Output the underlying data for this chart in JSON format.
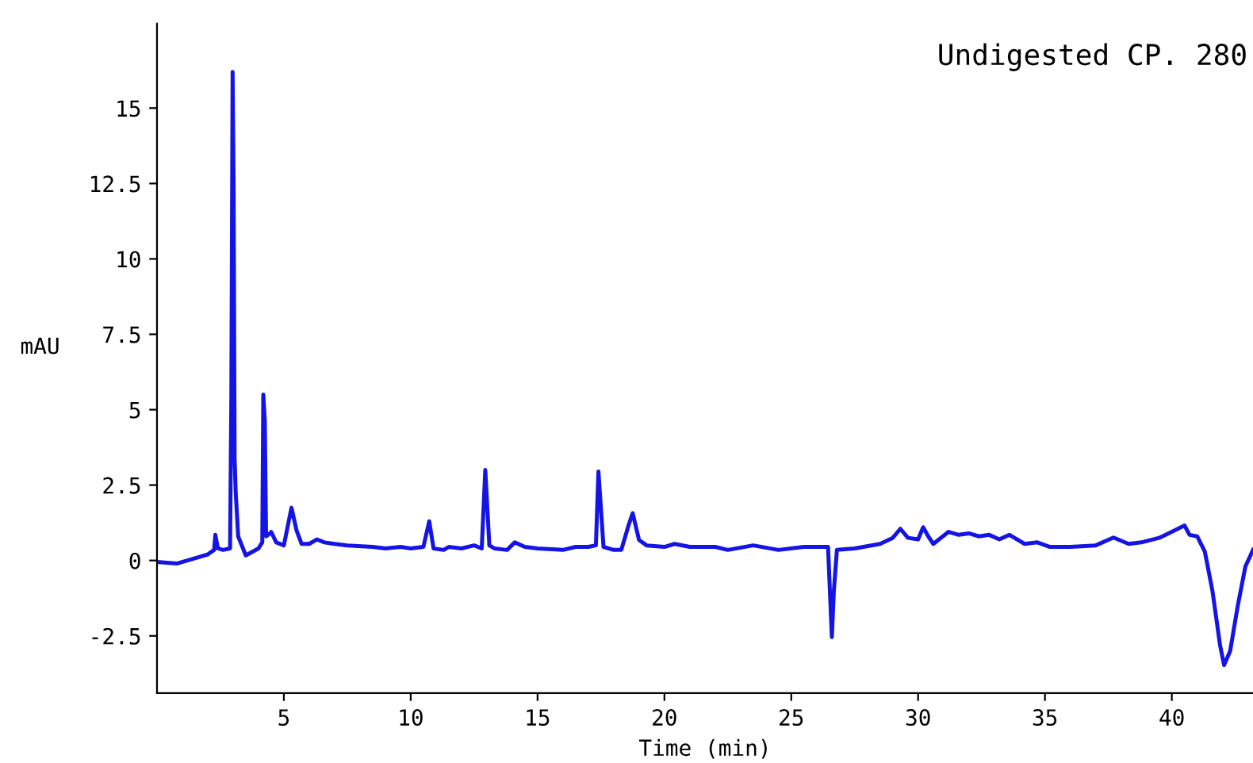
{
  "chart_data": {
    "type": "line",
    "xlabel": "Time (min)",
    "ylabel": "mAU",
    "annotations": [
      "Undigested CP. 280"
    ],
    "xlim": [
      0,
      43.2
    ],
    "ylim": [
      -4.4,
      17.8
    ],
    "xticks": [
      5,
      10,
      15,
      20,
      25,
      30,
      35,
      40
    ],
    "yticks": [
      -2.5,
      0,
      2.5,
      5,
      7.5,
      10,
      12.5,
      15
    ],
    "grid": false,
    "legend": false,
    "marker": "none",
    "line_style": "solid",
    "series": [
      {
        "color": "#1414e6",
        "x": [
          0,
          0.8,
          2.0,
          2.25,
          2.3,
          2.4,
          2.6,
          2.88,
          2.93,
          2.98,
          3.02,
          3.06,
          3.1,
          3.2,
          3.5,
          4.0,
          4.15,
          4.19,
          4.25,
          4.3,
          4.45,
          4.5,
          4.7,
          5.0,
          5.3,
          5.5,
          5.7,
          6.0,
          6.3,
          6.6,
          7.0,
          7.5,
          8.5,
          9.0,
          9.6,
          10.0,
          10.5,
          10.73,
          10.9,
          11.3,
          11.5,
          12.0,
          12.5,
          12.8,
          12.94,
          13.1,
          13.3,
          13.8,
          14.1,
          14.5,
          15,
          16,
          16.5,
          17,
          17.3,
          17.4,
          17.6,
          18.0,
          18.3,
          18.6,
          18.75,
          19.0,
          19.3,
          20.0,
          20.4,
          21,
          22,
          22.5,
          23.5,
          24.5,
          25.5,
          26.45,
          26.6,
          26.68,
          26.8,
          27.5,
          28.5,
          29.0,
          29.3,
          29.6,
          30.0,
          30.2,
          30.4,
          30.6,
          31.2,
          31.6,
          32.0,
          32.4,
          32.8,
          33.2,
          33.6,
          34.2,
          34.7,
          35.2,
          36,
          37,
          37.7,
          38.3,
          38.8,
          39.5,
          40.0,
          40.5,
          40.7,
          41.0,
          41.3,
          41.6,
          41.9,
          42.06,
          42.3,
          42.6,
          42.9,
          43.2
        ],
        "values": [
          -0.05,
          -0.1,
          0.2,
          0.35,
          0.85,
          0.4,
          0.35,
          0.4,
          5.4,
          16.2,
          12.4,
          3.4,
          2.3,
          0.8,
          0.17,
          0.4,
          0.6,
          5.5,
          4.6,
          0.8,
          0.9,
          0.95,
          0.6,
          0.5,
          1.75,
          1.0,
          0.55,
          0.55,
          0.7,
          0.6,
          0.55,
          0.5,
          0.45,
          0.4,
          0.45,
          0.4,
          0.45,
          1.3,
          0.4,
          0.35,
          0.45,
          0.4,
          0.5,
          0.4,
          3.0,
          0.5,
          0.4,
          0.35,
          0.6,
          0.45,
          0.4,
          0.35,
          0.45,
          0.45,
          0.5,
          2.95,
          0.45,
          0.35,
          0.35,
          1.2,
          1.57,
          0.68,
          0.5,
          0.45,
          0.55,
          0.45,
          0.45,
          0.35,
          0.5,
          0.35,
          0.45,
          0.45,
          -2.54,
          -1.0,
          0.35,
          0.4,
          0.55,
          0.75,
          1.05,
          0.75,
          0.7,
          1.1,
          0.8,
          0.55,
          0.95,
          0.85,
          0.9,
          0.8,
          0.85,
          0.7,
          0.85,
          0.55,
          0.6,
          0.45,
          0.45,
          0.5,
          0.76,
          0.55,
          0.6,
          0.75,
          0.95,
          1.16,
          0.85,
          0.8,
          0.3,
          -1.0,
          -2.8,
          -3.47,
          -3.0,
          -1.5,
          -0.2,
          0.35
        ]
      }
    ]
  }
}
